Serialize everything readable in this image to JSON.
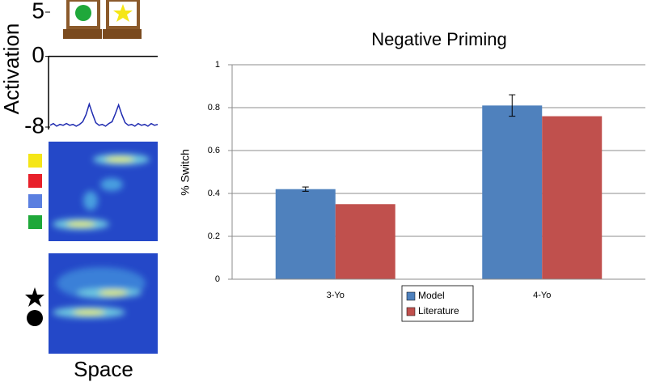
{
  "chart_data": [
    {
      "type": "line",
      "ylabel": "Activation",
      "xlabel": "Space",
      "ylim": [
        -8,
        5
      ],
      "yticks": [
        -8,
        0,
        5
      ],
      "color": "#1f2bb0",
      "values": [
        -7.8,
        -7.6,
        -7.9,
        -7.7,
        -7.8,
        -7.6,
        -7.8,
        -7.7,
        -7.9,
        -7.7,
        -7.4,
        -6.6,
        -5.4,
        -6.5,
        -7.5,
        -7.8,
        -7.7,
        -7.9,
        -7.6,
        -7.4,
        -6.5,
        -5.5,
        -6.6,
        -7.5,
        -7.8,
        -7.7,
        -7.9,
        -7.6,
        -7.8,
        -7.7,
        -7.9,
        -7.6,
        -7.8,
        -7.7
      ]
    },
    {
      "type": "bar",
      "title": "Negative Priming",
      "ylabel": "% Switch",
      "categories": [
        "3-Yo",
        "4-Yo"
      ],
      "series": [
        {
          "name": "Model",
          "color": "#4f81bd",
          "values": [
            0.42,
            0.81
          ],
          "errors": [
            0.01,
            0.05
          ]
        },
        {
          "name": "Literature",
          "color": "#c0504d",
          "values": [
            0.35,
            0.76
          ]
        }
      ],
      "ylim": [
        0,
        1
      ],
      "yticks": [
        0,
        0.2,
        0.4,
        0.6,
        0.8,
        1
      ],
      "grid": true
    }
  ]
}
